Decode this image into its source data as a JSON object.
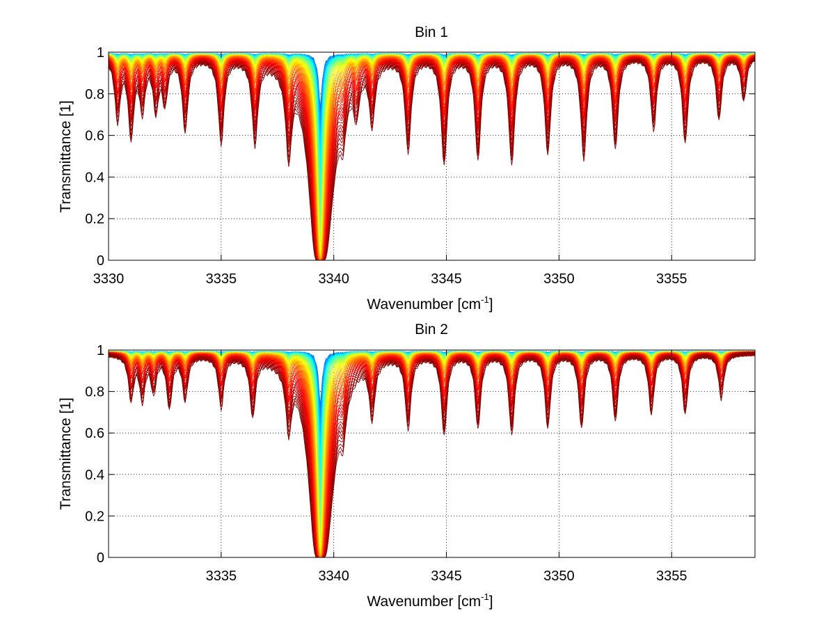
{
  "chart_data": [
    {
      "type": "line",
      "title": "Bin 1",
      "xlabel": "Wavenumber [cm",
      "xlabel_sup": "-1",
      "xlabel_end": "]",
      "ylabel": "Transmittance [1]",
      "xlim": [
        3330,
        3358.7
      ],
      "ylim": [
        0,
        1
      ],
      "xticks": [
        3330,
        3335,
        3340,
        3345,
        3350,
        3355
      ],
      "yticks": [
        0,
        0.2,
        0.4,
        0.6,
        0.8,
        1
      ],
      "xtick_labels": [
        "3330",
        "3335",
        "3340",
        "3345",
        "3350",
        "3355"
      ],
      "ytick_labels": [
        "0",
        "0.2",
        "0.4",
        "0.6",
        "0.8",
        "1"
      ],
      "grid": "dotted",
      "colormap": "jet (blue at top, green/yellow/orange, red at bottom)",
      "series_count": 80,
      "strong_line": {
        "center": 3339.4,
        "min_transmittance": 0
      },
      "absorption_lines": [
        {
          "center": 3330.4,
          "depth": 0.15
        },
        {
          "center": 3331.0,
          "depth": 0.2
        },
        {
          "center": 3331.5,
          "depth": 0.12
        },
        {
          "center": 3332.1,
          "depth": 0.12
        },
        {
          "center": 3332.5,
          "depth": 0.1
        },
        {
          "center": 3333.4,
          "depth": 0.18
        },
        {
          "center": 3335.0,
          "depth": 0.22
        },
        {
          "center": 3336.5,
          "depth": 0.22
        },
        {
          "center": 3338.0,
          "depth": 0.25
        },
        {
          "center": 3340.4,
          "depth": 0.12
        },
        {
          "center": 3341.0,
          "depth": 0.1
        },
        {
          "center": 3341.7,
          "depth": 0.15
        },
        {
          "center": 3343.3,
          "depth": 0.25
        },
        {
          "center": 3344.9,
          "depth": 0.3
        },
        {
          "center": 3346.4,
          "depth": 0.28
        },
        {
          "center": 3347.9,
          "depth": 0.3
        },
        {
          "center": 3349.5,
          "depth": 0.26
        },
        {
          "center": 3351.1,
          "depth": 0.28
        },
        {
          "center": 3352.5,
          "depth": 0.24
        },
        {
          "center": 3354.2,
          "depth": 0.18
        },
        {
          "center": 3355.6,
          "depth": 0.22
        },
        {
          "center": 3357.1,
          "depth": 0.15
        },
        {
          "center": 3358.2,
          "depth": 0.1
        }
      ]
    },
    {
      "type": "line",
      "title": "Bin 2",
      "xlabel": "Wavenumber [cm",
      "xlabel_sup": "-1",
      "xlabel_end": "]",
      "ylabel": "Transmittance [1]",
      "xlim": [
        3330,
        3358.7
      ],
      "ylim": [
        0,
        1
      ],
      "xticks": [
        3335,
        3340,
        3345,
        3350,
        3355
      ],
      "yticks": [
        0,
        0.2,
        0.4,
        0.6,
        0.8,
        1
      ],
      "xtick_labels": [
        "3335",
        "3340",
        "3345",
        "3350",
        "3355"
      ],
      "ytick_labels": [
        "0",
        "0.2",
        "0.4",
        "0.6",
        "0.8",
        "1"
      ],
      "grid": "dotted",
      "colormap": "jet (blue at top, green/yellow/orange, red at bottom)",
      "series_count": 80,
      "strong_line": {
        "center": 3339.4,
        "min_transmittance": 0
      },
      "absorption_lines": [
        {
          "center": 3331.0,
          "depth": 0.1
        },
        {
          "center": 3331.5,
          "depth": 0.1
        },
        {
          "center": 3332.0,
          "depth": 0.08
        },
        {
          "center": 3332.7,
          "depth": 0.12
        },
        {
          "center": 3333.4,
          "depth": 0.1
        },
        {
          "center": 3335.0,
          "depth": 0.12
        },
        {
          "center": 3336.4,
          "depth": 0.14
        },
        {
          "center": 3338.0,
          "depth": 0.16
        },
        {
          "center": 3340.4,
          "depth": 0.12
        },
        {
          "center": 3341.7,
          "depth": 0.14
        },
        {
          "center": 3343.3,
          "depth": 0.18
        },
        {
          "center": 3344.9,
          "depth": 0.2
        },
        {
          "center": 3346.4,
          "depth": 0.18
        },
        {
          "center": 3347.9,
          "depth": 0.2
        },
        {
          "center": 3349.5,
          "depth": 0.18
        },
        {
          "center": 3351.0,
          "depth": 0.18
        },
        {
          "center": 3352.5,
          "depth": 0.16
        },
        {
          "center": 3354.1,
          "depth": 0.14
        },
        {
          "center": 3355.6,
          "depth": 0.14
        },
        {
          "center": 3357.2,
          "depth": 0.1
        }
      ]
    }
  ]
}
